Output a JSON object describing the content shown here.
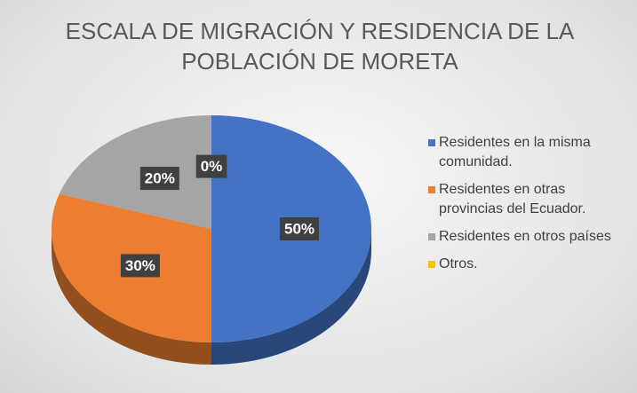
{
  "chart_data": {
    "type": "pie",
    "title": "ESCALA DE MIGRACIÓN Y RESIDENCIA DE LA POBLACIÓN DE MORETA",
    "categories": [
      "Residentes en la misma comunidad.",
      "Residentes en otras provincias del Ecuador.",
      "Residentes en otros países",
      "Otros."
    ],
    "values": [
      50,
      30,
      20,
      0
    ],
    "value_labels": [
      "50%",
      "30%",
      "20%",
      "0%"
    ],
    "colors": [
      "#4472c4",
      "#ed7d31",
      "#a5a5a5",
      "#ffc000"
    ],
    "legend": "right"
  }
}
